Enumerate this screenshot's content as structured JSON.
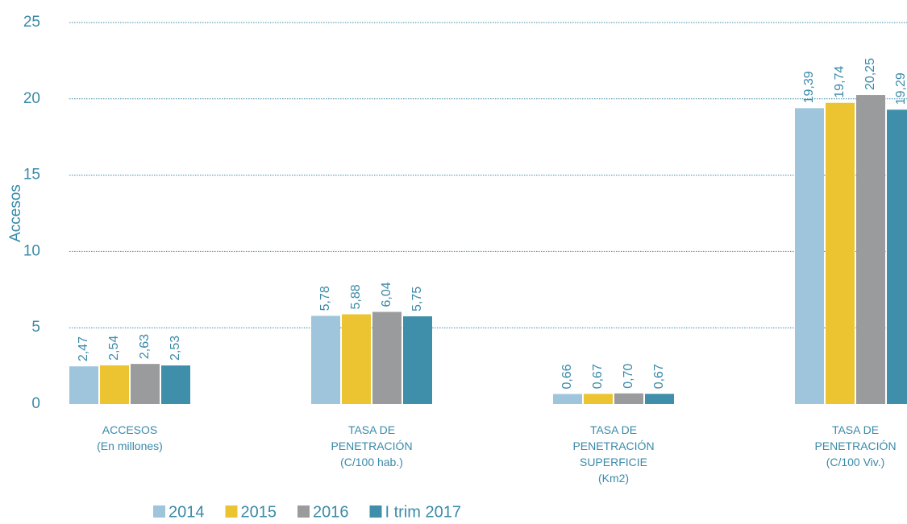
{
  "chart_data": {
    "type": "bar",
    "y_label": "Accesos",
    "categories": [
      "ACCESOS\n(En millones)",
      "TASA DE\nPENETRACIÓN\n(C/100 hab.)",
      "TASA DE\nPENETRACIÓN\nSUPERFICIE\n(Km2)",
      "TASA DE\nPENETRACIÓN\n(C/100 Viv.)"
    ],
    "series": [
      {
        "name": "2014",
        "color": "#9fc5dc",
        "values": [
          2.47,
          5.78,
          0.66,
          19.39
        ],
        "value_labels": [
          "2,47",
          "5,78",
          "0,66",
          "19,39"
        ]
      },
      {
        "name": "2015",
        "color": "#ecc431",
        "values": [
          2.54,
          5.88,
          0.67,
          19.74
        ],
        "value_labels": [
          "2,54",
          "5,88",
          "0,67",
          "19,74"
        ]
      },
      {
        "name": "2016",
        "color": "#999b9d",
        "values": [
          2.63,
          6.04,
          0.7,
          20.25
        ],
        "value_labels": [
          "2,63",
          "6,04",
          "0,70",
          "20,25"
        ]
      },
      {
        "name": "I trim 2017",
        "color": "#3f8eaa",
        "values": [
          2.53,
          5.75,
          0.67,
          19.29
        ],
        "value_labels": [
          "2,53",
          "5,75",
          "0,67",
          "19,29"
        ]
      }
    ],
    "ylim": [
      0,
      25
    ],
    "yticks": [
      0,
      5,
      10,
      15,
      20,
      25
    ],
    "grid": true,
    "legend": "bottom"
  }
}
